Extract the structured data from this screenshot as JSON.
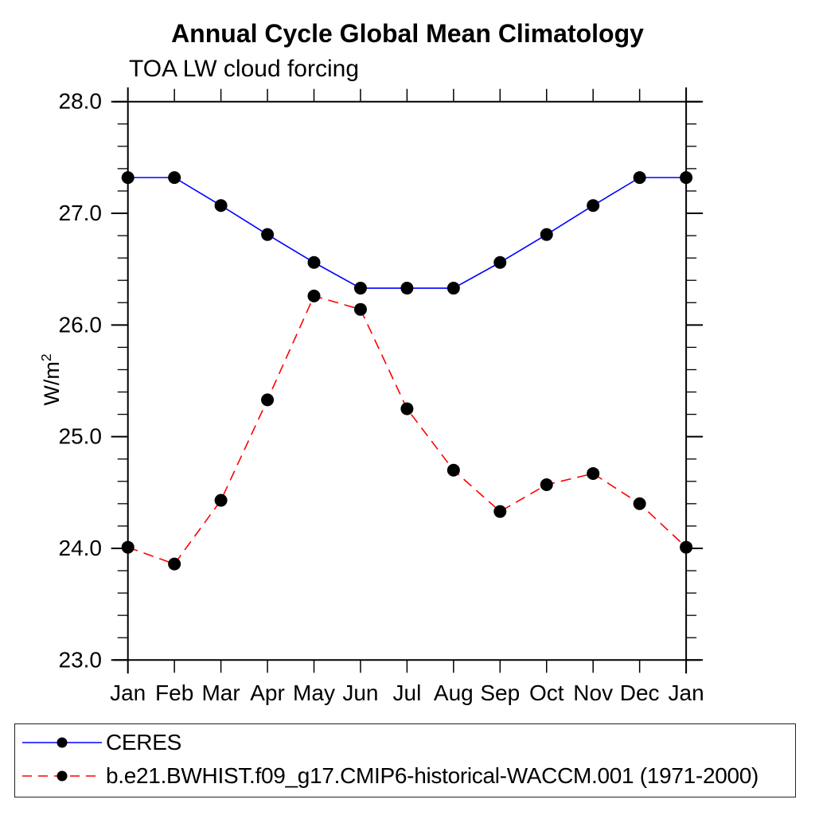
{
  "chart_data": {
    "type": "line",
    "title": "Annual Cycle Global Mean Climatology",
    "subtitle": "TOA LW cloud forcing",
    "ylabel": "W/m²",
    "ylabel_base": "W/m",
    "ylabel_sup": "2",
    "xlabel": "",
    "x_tick_labels": [
      "Jan",
      "Feb",
      "Mar",
      "Apr",
      "May",
      "Jun",
      "Jul",
      "Aug",
      "Sep",
      "Oct",
      "Nov",
      "Dec",
      "Jan"
    ],
    "ylim": [
      23.0,
      28.0
    ],
    "y_tick_values": [
      23,
      24,
      25,
      26,
      27,
      28
    ],
    "y_tick_labels": [
      "23.0",
      "24.0",
      "25.0",
      "26.0",
      "27.0",
      "28.0"
    ],
    "y_minor_tick_step": 0.2,
    "grid": false,
    "legend_position": "bottom",
    "marker_color": "#000000",
    "axis_color": "#000000",
    "series": [
      {
        "name": "CERES",
        "color": "#0000ff",
        "line_style": "solid",
        "marker": "circle",
        "values": [
          27.32,
          27.32,
          27.07,
          26.81,
          26.56,
          26.33,
          26.33,
          26.33,
          26.56,
          26.81,
          27.07,
          27.32,
          27.32
        ]
      },
      {
        "name": "b.e21.BWHIST.f09_g17.CMIP6-historical-WACCM.001 (1971-2000)",
        "color": "#ff0000",
        "line_style": "dashed",
        "marker": "circle",
        "values": [
          24.01,
          23.86,
          24.43,
          25.33,
          26.26,
          26.14,
          25.25,
          24.7,
          24.33,
          24.57,
          24.67,
          24.4,
          24.01
        ]
      }
    ]
  }
}
